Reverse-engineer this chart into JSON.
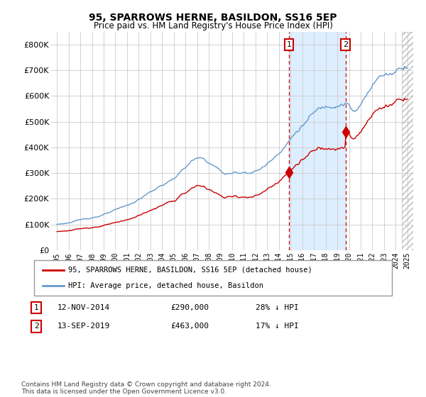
{
  "title": "95, SPARROWS HERNE, BASILDON, SS16 5EP",
  "subtitle": "Price paid vs. HM Land Registry's House Price Index (HPI)",
  "legend_line1": "95, SPARROWS HERNE, BASILDON, SS16 5EP (detached house)",
  "legend_line2": "HPI: Average price, detached house, Basildon",
  "purchase1_label": "1",
  "purchase1_date": "12-NOV-2014",
  "purchase1_price": "£290,000",
  "purchase1_hpi": "28% ↓ HPI",
  "purchase1_year": 2014.87,
  "purchase1_value": 290000,
  "purchase2_label": "2",
  "purchase2_date": "13-SEP-2019",
  "purchase2_price": "£463,000",
  "purchase2_hpi": "17% ↓ HPI",
  "purchase2_year": 2019.71,
  "purchase2_value": 463000,
  "footer": "Contains HM Land Registry data © Crown copyright and database right 2024.\nThis data is licensed under the Open Government Licence v3.0.",
  "red_color": "#cc0000",
  "blue_color": "#6699cc",
  "shade_color": "#ddeeff",
  "hatch_color": "#cccccc",
  "xlim": [
    1994.5,
    2025.5
  ],
  "ylim": [
    0,
    850000
  ],
  "yticks": [
    0,
    100000,
    200000,
    300000,
    400000,
    500000,
    600000,
    700000,
    800000
  ],
  "ytick_labels": [
    "£0",
    "£100K",
    "£200K",
    "£300K",
    "£400K",
    "£500K",
    "£600K",
    "£700K",
    "£800K"
  ],
  "xticks": [
    1995,
    1996,
    1997,
    1998,
    1999,
    2000,
    2001,
    2002,
    2003,
    2004,
    2005,
    2006,
    2007,
    2008,
    2009,
    2010,
    2011,
    2012,
    2013,
    2014,
    2015,
    2016,
    2017,
    2018,
    2019,
    2020,
    2021,
    2022,
    2023,
    2024,
    2025
  ],
  "hatch_start": 2024.5
}
